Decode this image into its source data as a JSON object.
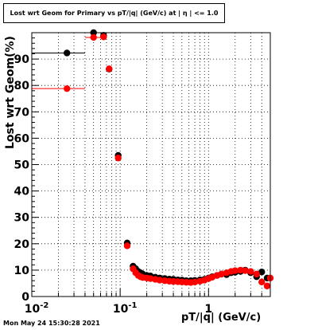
{
  "title": "Lost wrt Geom for Primary vs pT/|q| (GeV/c) at | η | <= 1.0",
  "timestamp": "Mon May 24 15:30:28 2021",
  "chart_data": {
    "type": "scatter",
    "xlabel": "pT/|q| (GeV/c)",
    "ylabel": "Lost wrt Geom(%)",
    "xscale": "log",
    "xlim": [
      0.01,
      5
    ],
    "ylim": [
      0,
      100
    ],
    "x_ticks": [
      {
        "value": 0.01,
        "base": "10",
        "exp": "-2"
      },
      {
        "value": 0.1,
        "base": "10",
        "exp": "-1"
      },
      {
        "value": 1,
        "base": "1",
        "exp": ""
      }
    ],
    "y_ticks": [
      "0",
      "10",
      "20",
      "30",
      "40",
      "50",
      "60",
      "70",
      "80",
      "90"
    ],
    "grid": true,
    "colors": {
      "black_series": "#000000",
      "red_series": "#ff0000"
    },
    "series": [
      {
        "color": "#000000",
        "points": [
          {
            "x": 0.025,
            "y": 92.3,
            "xlo": 0.01,
            "xhi": 0.04
          },
          {
            "x": 0.05,
            "y": 100,
            "xlo": 0.04,
            "xhi": 0.06
          },
          {
            "x": 0.065,
            "y": 99,
            "xlo": 0.06,
            "xhi": 0.07
          },
          {
            "x": 0.075,
            "y": 86.2
          },
          {
            "x": 0.095,
            "y": 53.5,
            "xlo": 0.09,
            "xhi": 0.1
          },
          {
            "x": 0.12,
            "y": 20.3
          },
          {
            "x": 0.14,
            "y": 11.5
          },
          {
            "x": 0.15,
            "y": 10.5
          },
          {
            "x": 0.16,
            "y": 9.5
          },
          {
            "x": 0.17,
            "y": 9.0
          },
          {
            "x": 0.18,
            "y": 8.5
          },
          {
            "x": 0.2,
            "y": 8.0
          },
          {
            "x": 0.22,
            "y": 7.8
          },
          {
            "x": 0.25,
            "y": 7.3
          },
          {
            "x": 0.28,
            "y": 7.0
          },
          {
            "x": 0.32,
            "y": 6.8
          },
          {
            "x": 0.36,
            "y": 6.6
          },
          {
            "x": 0.4,
            "y": 6.5
          },
          {
            "x": 0.45,
            "y": 6.3
          },
          {
            "x": 0.5,
            "y": 6.2
          },
          {
            "x": 0.56,
            "y": 6.0
          },
          {
            "x": 0.63,
            "y": 6.0
          },
          {
            "x": 0.7,
            "y": 6.1
          },
          {
            "x": 0.8,
            "y": 6.3
          },
          {
            "x": 0.9,
            "y": 6.5
          },
          {
            "x": 1.0,
            "y": 7.0
          },
          {
            "x": 1.1,
            "y": 7.5
          },
          {
            "x": 1.25,
            "y": 8.0
          },
          {
            "x": 1.4,
            "y": 8.5
          },
          {
            "x": 1.6,
            "y": 8.3
          },
          {
            "x": 1.8,
            "y": 9.0
          },
          {
            "x": 2.0,
            "y": 9.2
          },
          {
            "x": 2.3,
            "y": 9.5
          },
          {
            "x": 2.6,
            "y": 10.0
          },
          {
            "x": 3.0,
            "y": 9.0
          },
          {
            "x": 3.5,
            "y": 7.5
          },
          {
            "x": 4.0,
            "y": 9.3
          },
          {
            "x": 4.6,
            "y": 7.0
          }
        ]
      },
      {
        "color": "#ff0000",
        "points": [
          {
            "x": 0.025,
            "y": 78.8,
            "xlo": 0.01,
            "xhi": 0.04
          },
          {
            "x": 0.05,
            "y": 98.2,
            "xlo": 0.04,
            "xhi": 0.06
          },
          {
            "x": 0.065,
            "y": 98.4
          },
          {
            "x": 0.075,
            "y": 86.3
          },
          {
            "x": 0.095,
            "y": 52.5,
            "xlo": 0.09,
            "xhi": 0.1
          },
          {
            "x": 0.12,
            "y": 19.2
          },
          {
            "x": 0.14,
            "y": 10.5
          },
          {
            "x": 0.15,
            "y": 9.0
          },
          {
            "x": 0.16,
            "y": 8.0
          },
          {
            "x": 0.17,
            "y": 7.5
          },
          {
            "x": 0.18,
            "y": 7.2
          },
          {
            "x": 0.2,
            "y": 7.0
          },
          {
            "x": 0.22,
            "y": 6.8
          },
          {
            "x": 0.25,
            "y": 6.5
          },
          {
            "x": 0.28,
            "y": 6.2
          },
          {
            "x": 0.32,
            "y": 6.0
          },
          {
            "x": 0.36,
            "y": 5.8
          },
          {
            "x": 0.4,
            "y": 5.7
          },
          {
            "x": 0.45,
            "y": 5.6
          },
          {
            "x": 0.5,
            "y": 5.5
          },
          {
            "x": 0.56,
            "y": 5.4
          },
          {
            "x": 0.63,
            "y": 5.3
          },
          {
            "x": 0.7,
            "y": 5.5
          },
          {
            "x": 0.8,
            "y": 5.8
          },
          {
            "x": 0.9,
            "y": 6.2
          },
          {
            "x": 1.0,
            "y": 6.8
          },
          {
            "x": 1.1,
            "y": 7.3
          },
          {
            "x": 1.25,
            "y": 8.0
          },
          {
            "x": 1.4,
            "y": 8.5
          },
          {
            "x": 1.6,
            "y": 9.0
          },
          {
            "x": 1.8,
            "y": 9.5
          },
          {
            "x": 2.0,
            "y": 9.8
          },
          {
            "x": 2.3,
            "y": 10.0
          },
          {
            "x": 2.6,
            "y": 9.8
          },
          {
            "x": 3.0,
            "y": 9.5
          },
          {
            "x": 3.5,
            "y": 8.5
          },
          {
            "x": 4.0,
            "y": 5.5
          },
          {
            "x": 4.6,
            "y": 4.0
          },
          {
            "x": 5.0,
            "y": 7.0
          }
        ]
      }
    ]
  }
}
